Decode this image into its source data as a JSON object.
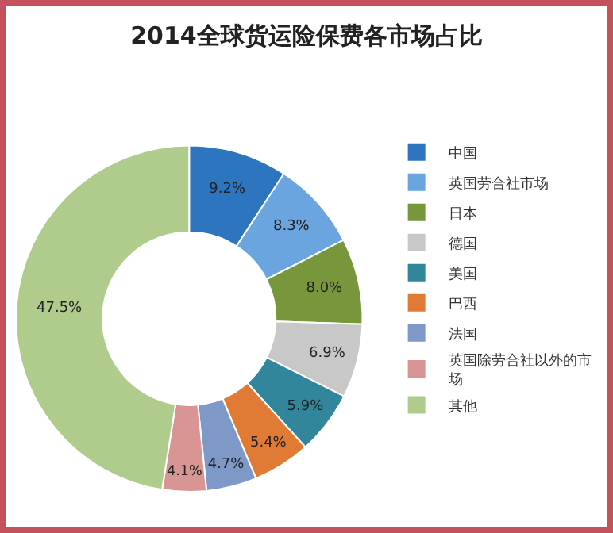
{
  "chart_data": {
    "type": "donut",
    "title": "2014全球货运险保费各市场占比",
    "categories": [
      "中国",
      "英国劳合社市场",
      "日本",
      "德国",
      "美国",
      "巴西",
      "法国",
      "英国除劳合社以外的市场",
      "其他"
    ],
    "values": [
      9.2,
      8.3,
      8.0,
      6.9,
      5.9,
      5.4,
      4.7,
      4.1,
      47.5
    ],
    "value_labels": [
      "9.2%",
      "8.3%",
      "8.0%",
      "6.9%",
      "5.9%",
      "5.4%",
      "4.7%",
      "4.1%",
      "47.5%"
    ],
    "colors": [
      "#2e75c0",
      "#6aa5e0",
      "#78973c",
      "#c8c8c8",
      "#31869b",
      "#e07a35",
      "#7e98c8",
      "#d99594",
      "#b0cc8c"
    ],
    "legend": "right"
  }
}
